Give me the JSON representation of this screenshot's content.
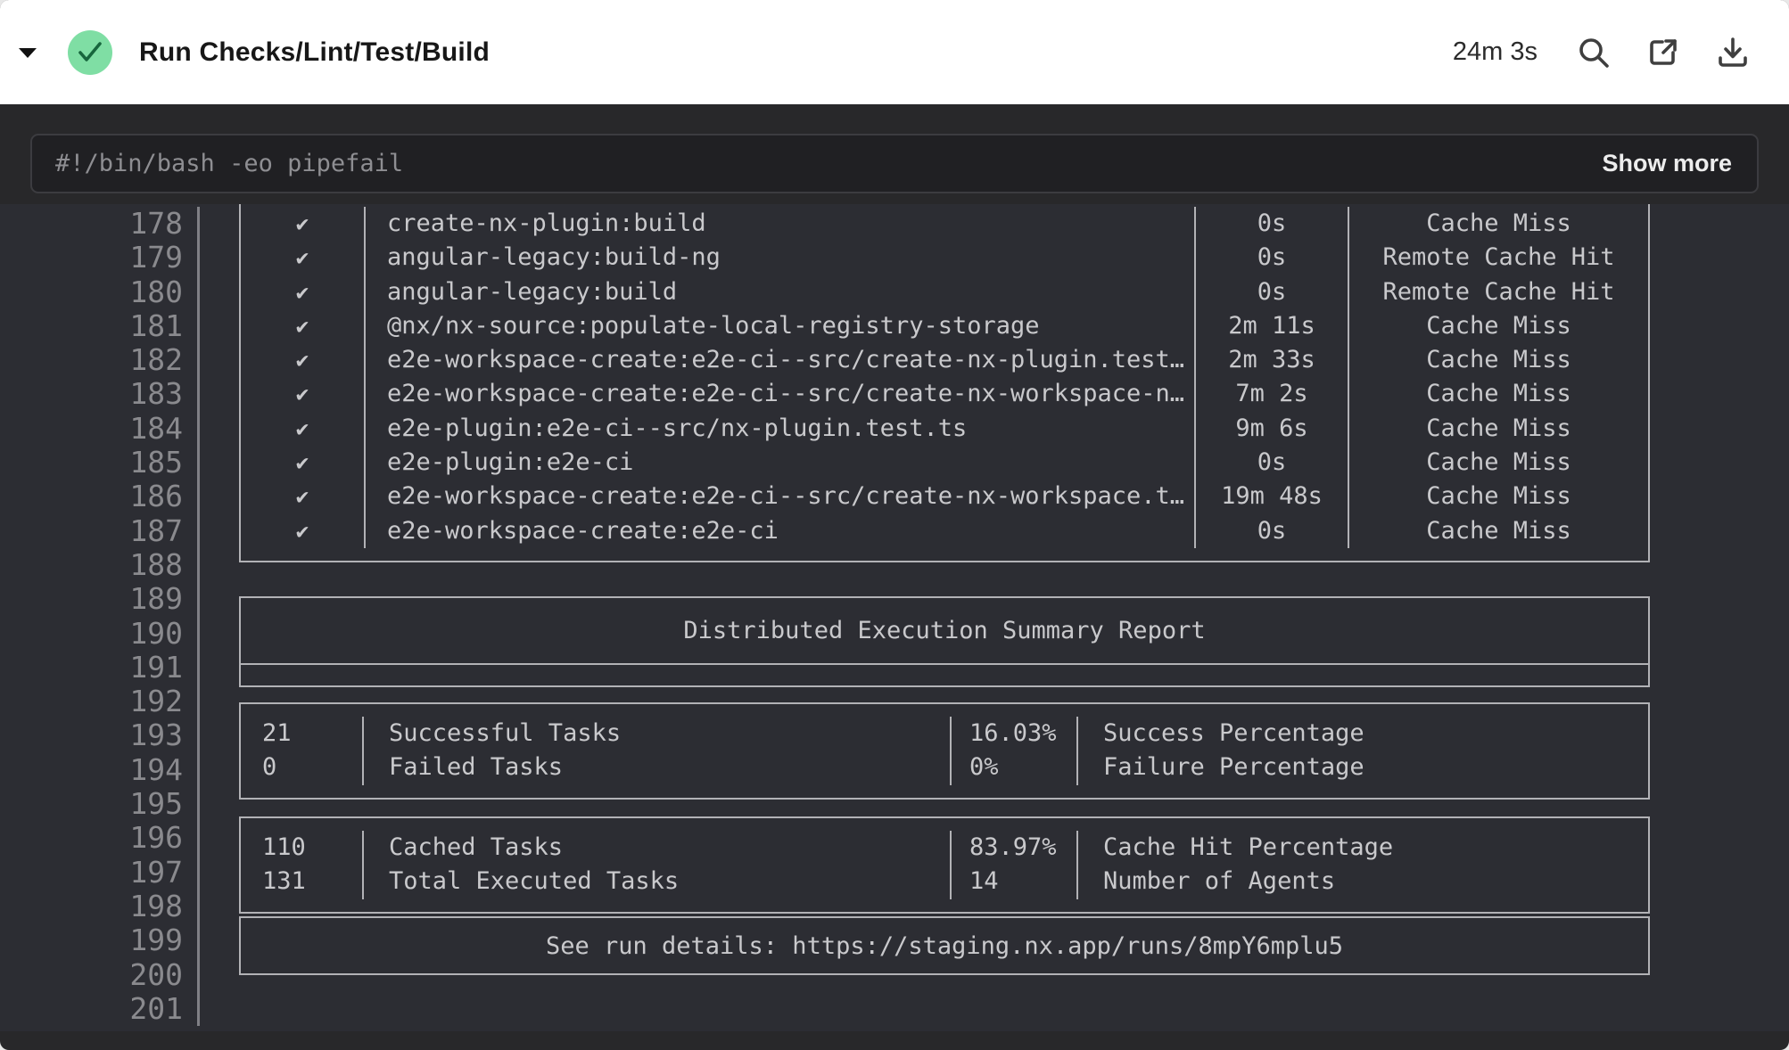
{
  "header": {
    "title": "Run Checks/Lint/Test/Build",
    "duration": "24m 3s",
    "status": "success",
    "icons": [
      "caret-down",
      "check-circle",
      "search",
      "open-external",
      "download"
    ]
  },
  "command": {
    "text": "#!/bin/bash -eo pipefail",
    "show_more_label": "Show more"
  },
  "log": {
    "line_start": 178,
    "line_end": 201,
    "tasks": [
      {
        "status": "✔",
        "task": "create-nx-plugin:build",
        "duration": "0s",
        "cache": "Cache Miss"
      },
      {
        "status": "✔",
        "task": "angular-legacy:build-ng",
        "duration": "0s",
        "cache": "Remote Cache Hit"
      },
      {
        "status": "✔",
        "task": "angular-legacy:build",
        "duration": "0s",
        "cache": "Remote Cache Hit"
      },
      {
        "status": "✔",
        "task": "@nx/nx-source:populate-local-registry-storage",
        "duration": "2m 11s",
        "cache": "Cache Miss"
      },
      {
        "status": "✔",
        "task": "e2e-workspace-create:e2e-ci--src/create-nx-plugin.test…",
        "duration": "2m 33s",
        "cache": "Cache Miss"
      },
      {
        "status": "✔",
        "task": "e2e-workspace-create:e2e-ci--src/create-nx-workspace-n…",
        "duration": "7m 2s",
        "cache": "Cache Miss"
      },
      {
        "status": "✔",
        "task": "e2e-plugin:e2e-ci--src/nx-plugin.test.ts",
        "duration": "9m 6s",
        "cache": "Cache Miss"
      },
      {
        "status": "✔",
        "task": "e2e-plugin:e2e-ci",
        "duration": "0s",
        "cache": "Cache Miss"
      },
      {
        "status": "✔",
        "task": "e2e-workspace-create:e2e-ci--src/create-nx-workspace.t…",
        "duration": "19m 48s",
        "cache": "Cache Miss"
      },
      {
        "status": "✔",
        "task": "e2e-workspace-create:e2e-ci",
        "duration": "0s",
        "cache": "Cache Miss"
      }
    ],
    "summary": {
      "title": "Distributed Execution Summary Report",
      "stats_groups": [
        [
          {
            "value": "21",
            "label": "Successful Tasks",
            "pct": "16.03%",
            "pct_label": "Success Percentage"
          },
          {
            "value": "0",
            "label": "Failed Tasks",
            "pct": "0%",
            "pct_label": "Failure Percentage"
          }
        ],
        [
          {
            "value": "110",
            "label": "Cached Tasks",
            "pct": "83.97%",
            "pct_label": "Cache Hit Percentage"
          },
          {
            "value": "131",
            "label": "Total Executed Tasks",
            "pct": "14",
            "pct_label": "Number of Agents"
          }
        ]
      ],
      "footer": "See run details: https://staging.nx.app/runs/8mpY6mplu5"
    }
  },
  "colors": {
    "header_bg": "#ffffff",
    "success_bg": "#7fdea4",
    "success_check": "#17663d",
    "outer_bg": "#28282a",
    "command_bg": "#202023",
    "log_bg": "#2c2d33",
    "log_text": "#c9c9cc",
    "border_c": "#b2b2b6"
  }
}
